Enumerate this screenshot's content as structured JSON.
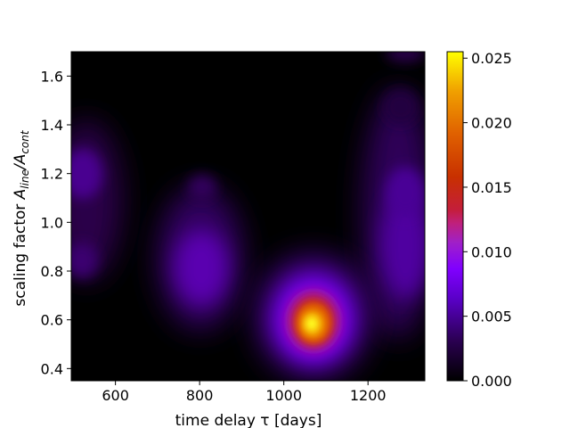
{
  "chart_data": {
    "type": "heatmap",
    "title": "",
    "xlabel": "time delay  τ [days]",
    "ylabel_main": "scaling factor  ",
    "ylabel_symbol": "A",
    "ylabel_sub_num": "line",
    "ylabel_slash": "/A",
    "ylabel_sub_den": "cont",
    "xlim": [
      495,
      1335
    ],
    "ylim": [
      0.35,
      1.7
    ],
    "xticks": [
      600,
      800,
      1000,
      1200
    ],
    "xtick_labels": [
      "600",
      "800",
      "1000",
      "1200"
    ],
    "yticks": [
      0.4,
      0.6,
      0.8,
      1.0,
      1.2,
      1.4,
      1.6
    ],
    "ytick_labels": [
      "0.4",
      "0.6",
      "0.8",
      "1.0",
      "1.2",
      "1.4",
      "1.6"
    ],
    "colormap": "gnuplot",
    "colorbar": {
      "range": [
        0.0,
        0.0255
      ],
      "ticks": [
        0.0,
        0.005,
        0.01,
        0.015,
        0.02,
        0.025
      ],
      "tick_labels": [
        "0.000",
        "0.005",
        "0.010",
        "0.015",
        "0.020",
        "0.025"
      ]
    },
    "peaks": [
      {
        "x": 1068,
        "y": 0.59,
        "value": 0.025
      },
      {
        "x": 805,
        "y": 0.8,
        "value": 0.0052
      },
      {
        "x": 1290,
        "y": 0.9,
        "value": 0.0042
      },
      {
        "x": 530,
        "y": 1.19,
        "value": 0.003
      },
      {
        "x": 1280,
        "y": 1.68,
        "value": 0.0012
      }
    ]
  }
}
